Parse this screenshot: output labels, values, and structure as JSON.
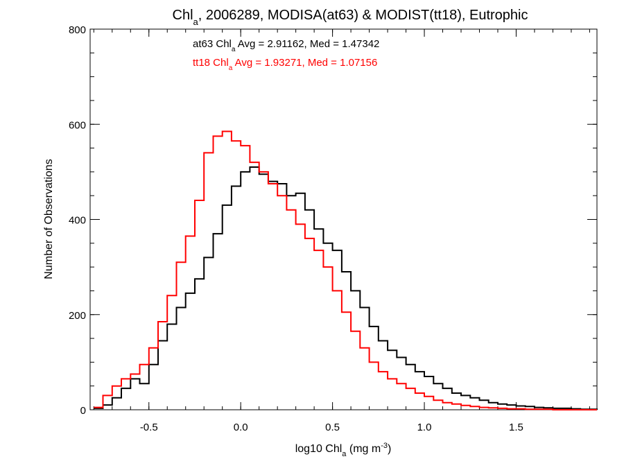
{
  "chart_data": {
    "type": "line",
    "title_parts": {
      "pre": "Chl",
      "sub": "a",
      "post": ", 2006289, MODISA(at63) & MODIST(tt18), Eutrophic"
    },
    "xlabel_parts": {
      "pre": "log10 Chl",
      "sub": "a",
      "mid": " (mg m",
      "sup": "-3",
      "post": ")"
    },
    "ylabel": "Number of Observations",
    "xlim": [
      -0.82,
      1.94
    ],
    "ylim": [
      0,
      800
    ],
    "x_ticks": [
      -0.5,
      0.0,
      0.5,
      1.0,
      1.5
    ],
    "x_tick_labels": [
      "-0.5",
      "0.0",
      "0.5",
      "1.0",
      "1.5"
    ],
    "y_ticks": [
      0,
      200,
      400,
      600,
      800
    ],
    "y_tick_labels": [
      "0",
      "200",
      "400",
      "600",
      "800"
    ],
    "x_minor_step": 0.1,
    "y_minor_step": 50,
    "grid": false,
    "annotations": [
      {
        "color": "#000000",
        "pre": "at63 Chl",
        "sub": "a",
        "post": " Avg = 2.91162, Med = 1.47342"
      },
      {
        "color": "#ff0000",
        "pre": "tt18 Chl",
        "sub": "a",
        "post": " Avg = 1.93271, Med = 1.07156"
      }
    ],
    "series": [
      {
        "id": "at63",
        "color": "#000000",
        "x": [
          -0.8,
          -0.75,
          -0.7,
          -0.65,
          -0.6,
          -0.55,
          -0.5,
          -0.45,
          -0.4,
          -0.35,
          -0.3,
          -0.25,
          -0.2,
          -0.15,
          -0.1,
          -0.05,
          0.0,
          0.05,
          0.1,
          0.15,
          0.2,
          0.25,
          0.3,
          0.35,
          0.4,
          0.45,
          0.5,
          0.55,
          0.6,
          0.65,
          0.7,
          0.75,
          0.8,
          0.85,
          0.9,
          0.95,
          1.0,
          1.05,
          1.1,
          1.15,
          1.2,
          1.25,
          1.3,
          1.35,
          1.4,
          1.45,
          1.5,
          1.55,
          1.6,
          1.65,
          1.7,
          1.75,
          1.8,
          1.85,
          1.9,
          1.94
        ],
        "y": [
          3,
          10,
          25,
          45,
          65,
          55,
          95,
          145,
          180,
          215,
          245,
          275,
          320,
          370,
          430,
          470,
          500,
          510,
          495,
          480,
          475,
          450,
          455,
          420,
          380,
          350,
          335,
          290,
          250,
          215,
          175,
          145,
          125,
          110,
          95,
          80,
          70,
          55,
          45,
          35,
          30,
          25,
          20,
          15,
          12,
          10,
          8,
          7,
          5,
          4,
          3,
          3,
          2,
          1,
          1,
          0
        ]
      },
      {
        "id": "tt18",
        "color": "#ff0000",
        "x": [
          -0.8,
          -0.75,
          -0.7,
          -0.65,
          -0.6,
          -0.55,
          -0.5,
          -0.45,
          -0.4,
          -0.35,
          -0.3,
          -0.25,
          -0.2,
          -0.15,
          -0.1,
          -0.05,
          0.0,
          0.05,
          0.1,
          0.15,
          0.2,
          0.25,
          0.3,
          0.35,
          0.4,
          0.45,
          0.5,
          0.55,
          0.6,
          0.65,
          0.7,
          0.75,
          0.8,
          0.85,
          0.9,
          0.95,
          1.0,
          1.05,
          1.1,
          1.15,
          1.2,
          1.25,
          1.3,
          1.35,
          1.4,
          1.45,
          1.5,
          1.55,
          1.6,
          1.65,
          1.7,
          1.75,
          1.8,
          1.85,
          1.9,
          1.94
        ],
        "y": [
          5,
          30,
          50,
          65,
          75,
          95,
          130,
          185,
          240,
          310,
          365,
          440,
          540,
          575,
          585,
          565,
          555,
          520,
          500,
          475,
          450,
          420,
          390,
          360,
          335,
          300,
          250,
          205,
          165,
          130,
          100,
          80,
          65,
          55,
          45,
          35,
          28,
          20,
          15,
          12,
          9,
          7,
          5,
          4,
          3,
          2,
          2,
          1,
          1,
          1,
          0,
          0,
          0,
          0,
          0,
          0
        ]
      }
    ]
  }
}
